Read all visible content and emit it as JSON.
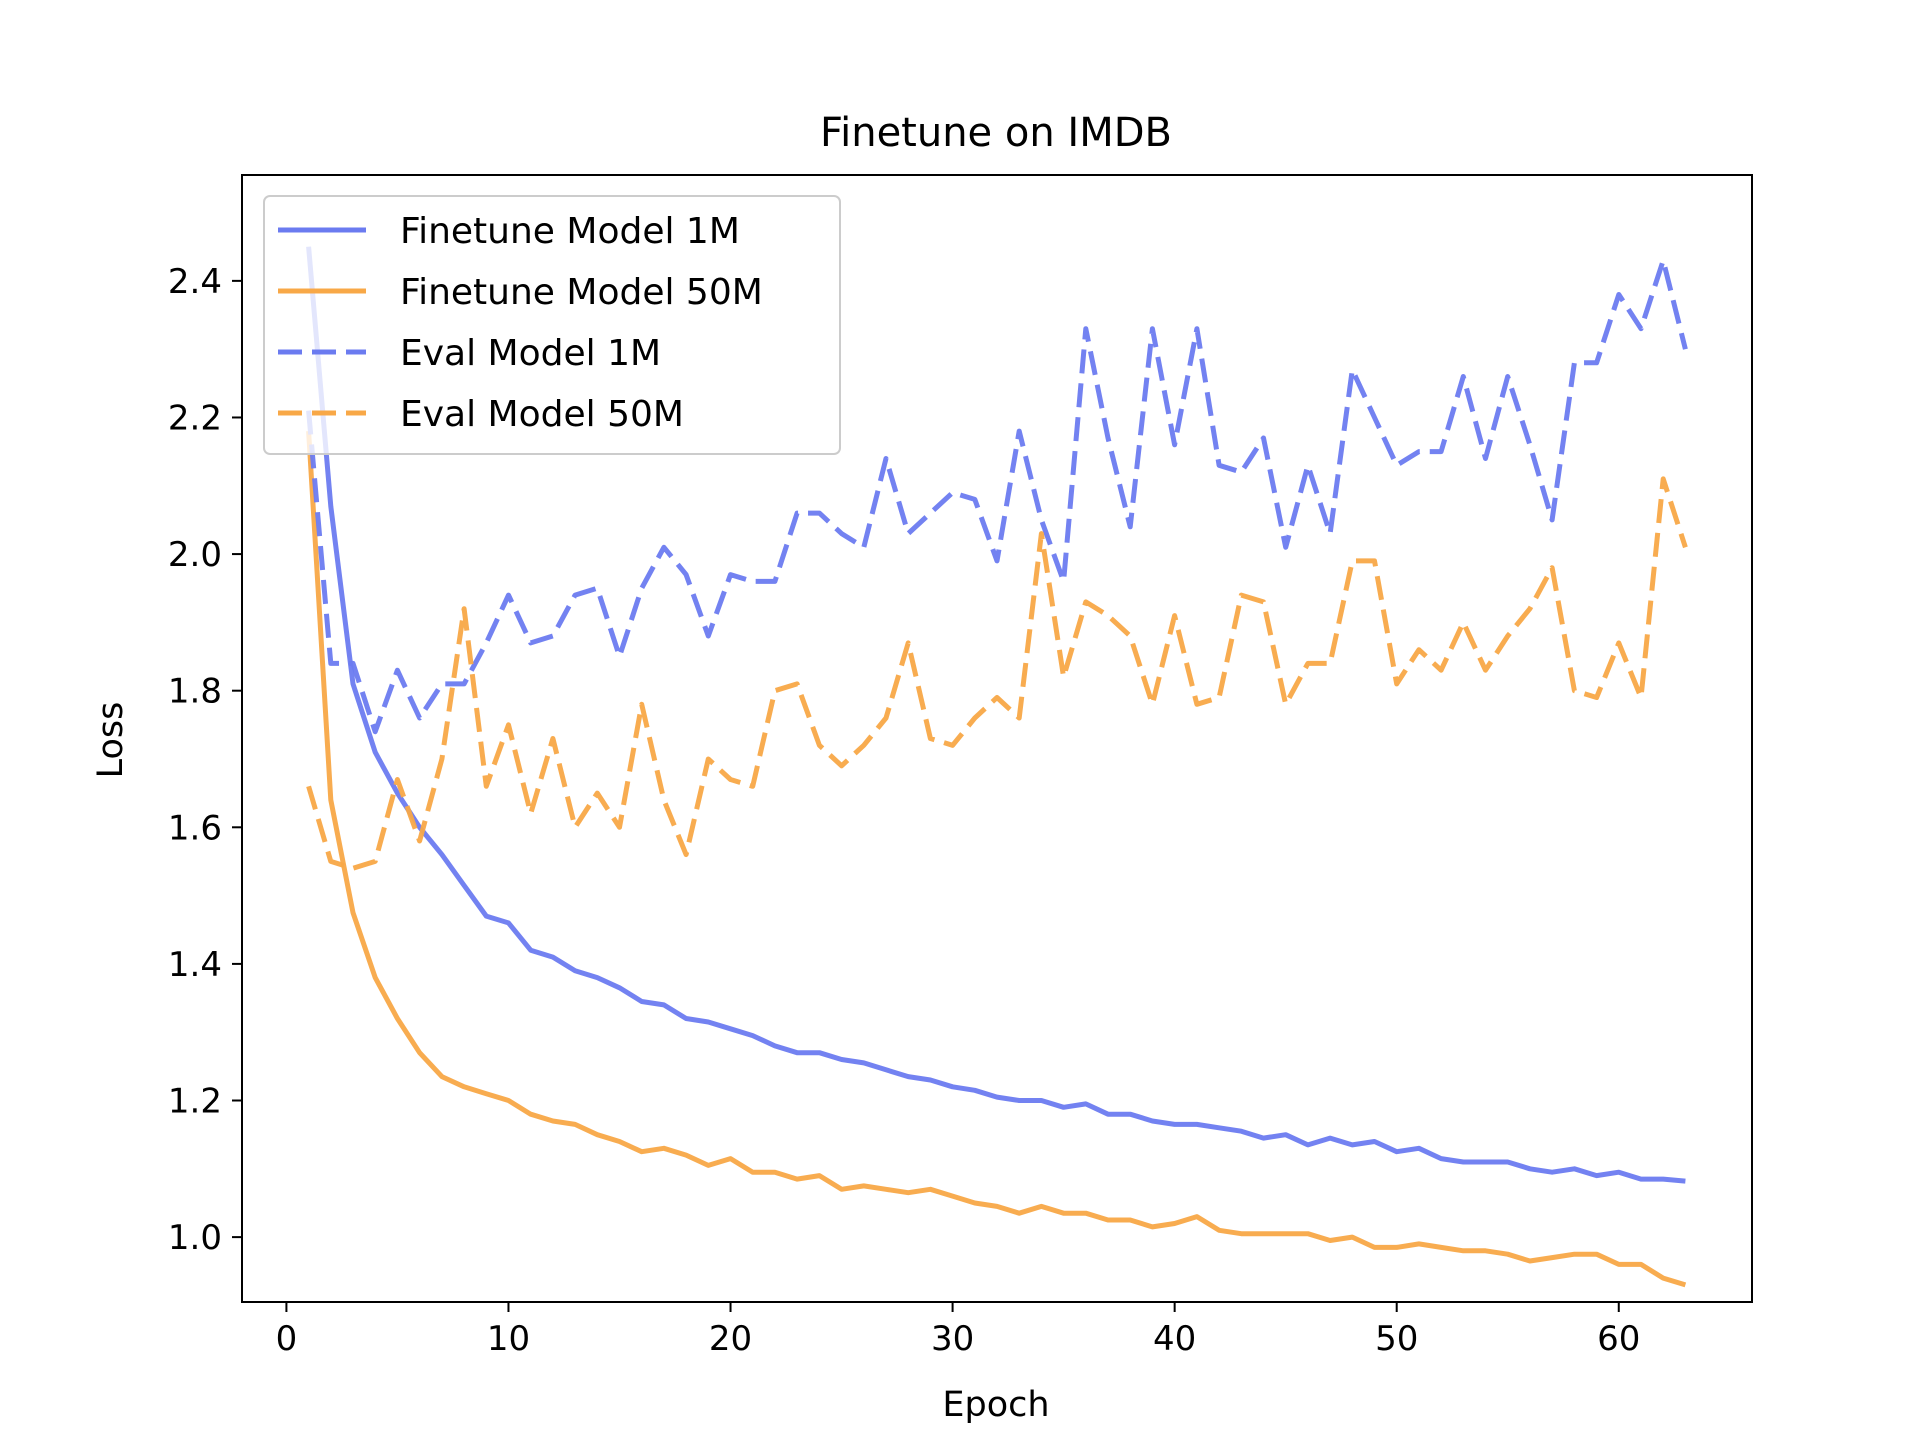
{
  "chart_data": {
    "type": "line",
    "title": "Finetune on IMDB",
    "xlabel": "Epoch",
    "ylabel": "Loss",
    "xlim": [
      -2,
      66
    ],
    "ylim": [
      0.905,
      2.555
    ],
    "xticks": [
      0,
      10,
      20,
      30,
      40,
      50,
      60
    ],
    "yticks": [
      1.0,
      1.2,
      1.4,
      1.6,
      1.8,
      2.0,
      2.2,
      2.4
    ],
    "xtick_labels": [
      "0",
      "10",
      "20",
      "30",
      "40",
      "50",
      "60"
    ],
    "ytick_labels": [
      "1.0",
      "1.2",
      "1.4",
      "1.6",
      "1.8",
      "2.0",
      "2.2",
      "2.4"
    ],
    "grid": false,
    "legend_position": "upper-left",
    "x": [
      1,
      2,
      3,
      4,
      5,
      6,
      7,
      8,
      9,
      10,
      11,
      12,
      13,
      14,
      15,
      16,
      17,
      18,
      19,
      20,
      21,
      22,
      23,
      24,
      25,
      26,
      27,
      28,
      29,
      30,
      31,
      32,
      33,
      34,
      35,
      36,
      37,
      38,
      39,
      40,
      41,
      42,
      43,
      44,
      45,
      46,
      47,
      48,
      49,
      50,
      51,
      52,
      53,
      54,
      55,
      56,
      57,
      58,
      59,
      60,
      61,
      62,
      63
    ],
    "series": [
      {
        "name": "Finetune Model 1M",
        "color": "#6b7bf0",
        "style": "solid",
        "values": [
          2.45,
          2.07,
          1.81,
          1.71,
          1.65,
          1.6,
          1.56,
          1.515,
          1.47,
          1.46,
          1.42,
          1.41,
          1.39,
          1.38,
          1.365,
          1.345,
          1.34,
          1.32,
          1.315,
          1.305,
          1.295,
          1.28,
          1.27,
          1.27,
          1.26,
          1.255,
          1.245,
          1.235,
          1.23,
          1.22,
          1.215,
          1.205,
          1.2,
          1.2,
          1.19,
          1.195,
          1.18,
          1.18,
          1.17,
          1.165,
          1.165,
          1.16,
          1.155,
          1.145,
          1.15,
          1.135,
          1.145,
          1.135,
          1.14,
          1.125,
          1.13,
          1.115,
          1.11,
          1.11,
          1.11,
          1.1,
          1.095,
          1.1,
          1.09,
          1.095,
          1.085,
          1.085,
          1.082
        ]
      },
      {
        "name": "Finetune Model 50M",
        "color": "#f8a847",
        "style": "solid",
        "values": [
          2.18,
          1.64,
          1.475,
          1.38,
          1.32,
          1.27,
          1.235,
          1.22,
          1.21,
          1.2,
          1.18,
          1.17,
          1.165,
          1.15,
          1.14,
          1.125,
          1.13,
          1.12,
          1.105,
          1.115,
          1.095,
          1.095,
          1.085,
          1.09,
          1.07,
          1.075,
          1.07,
          1.065,
          1.07,
          1.06,
          1.05,
          1.045,
          1.035,
          1.045,
          1.035,
          1.035,
          1.025,
          1.025,
          1.015,
          1.02,
          1.03,
          1.01,
          1.005,
          1.005,
          1.005,
          1.005,
          0.995,
          1.0,
          0.985,
          0.985,
          0.99,
          0.985,
          0.98,
          0.98,
          0.975,
          0.965,
          0.97,
          0.975,
          0.975,
          0.96,
          0.96,
          0.94,
          0.93
        ]
      },
      {
        "name": "Eval Model 1M",
        "color": "#6b7bf0",
        "style": "dashed",
        "values": [
          2.21,
          1.84,
          1.84,
          1.74,
          1.83,
          1.76,
          1.81,
          1.81,
          1.87,
          1.94,
          1.87,
          1.88,
          1.94,
          1.95,
          1.85,
          1.95,
          2.01,
          1.97,
          1.88,
          1.97,
          1.96,
          1.96,
          2.06,
          2.06,
          2.03,
          2.01,
          2.14,
          2.03,
          2.06,
          2.09,
          2.08,
          1.99,
          2.18,
          2.05,
          1.96,
          2.33,
          2.17,
          2.04,
          2.33,
          2.16,
          2.33,
          2.13,
          2.12,
          2.17,
          2.01,
          2.13,
          2.03,
          2.27,
          2.2,
          2.13,
          2.15,
          2.15,
          2.26,
          2.14,
          2.26,
          2.16,
          2.05,
          2.28,
          2.28,
          2.38,
          2.33,
          2.43,
          2.3
        ]
      },
      {
        "name": "Eval Model 50M",
        "color": "#f8a847",
        "style": "dashed",
        "values": [
          1.66,
          1.55,
          1.54,
          1.55,
          1.67,
          1.58,
          1.7,
          1.92,
          1.66,
          1.75,
          1.62,
          1.73,
          1.6,
          1.65,
          1.6,
          1.78,
          1.64,
          1.56,
          1.7,
          1.67,
          1.66,
          1.8,
          1.81,
          1.72,
          1.69,
          1.72,
          1.76,
          1.87,
          1.73,
          1.72,
          1.76,
          1.79,
          1.76,
          2.03,
          1.82,
          1.93,
          1.91,
          1.88,
          1.78,
          1.91,
          1.78,
          1.79,
          1.94,
          1.93,
          1.78,
          1.84,
          1.84,
          1.99,
          1.99,
          1.81,
          1.86,
          1.83,
          1.9,
          1.83,
          1.88,
          1.92,
          1.98,
          1.8,
          1.79,
          1.87,
          1.79,
          2.11,
          2.01
        ]
      }
    ]
  }
}
